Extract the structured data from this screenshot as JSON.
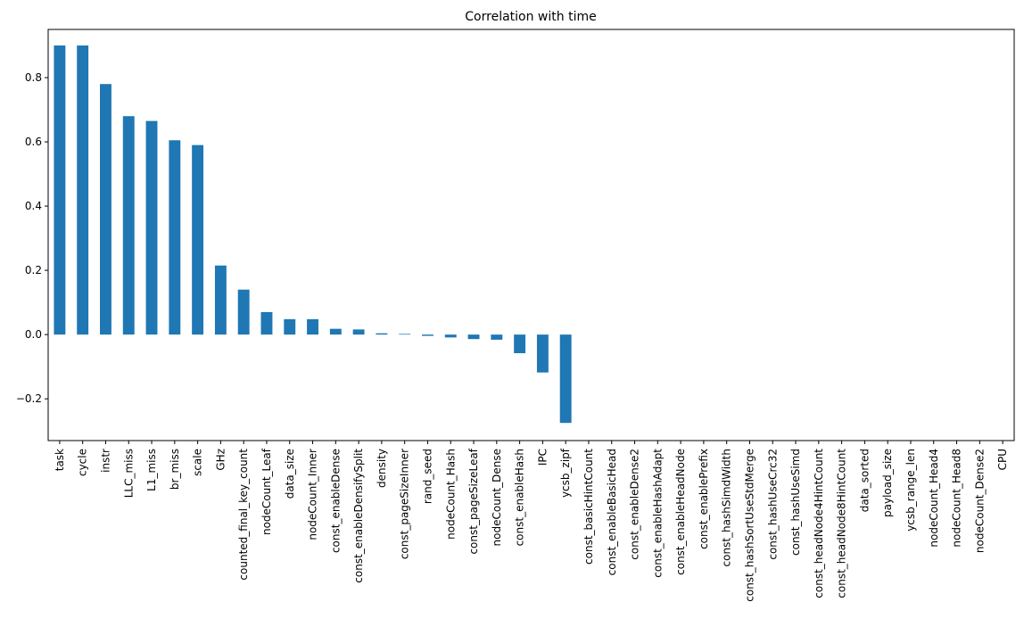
{
  "chart_data": {
    "type": "bar",
    "title": "Correlation with time",
    "xlabel": "",
    "ylabel": "",
    "ylim": [
      -0.33,
      0.95
    ],
    "yticks": [
      -0.2,
      0.0,
      0.2,
      0.4,
      0.6,
      0.8
    ],
    "ytick_labels": [
      "−0.2",
      "0.0",
      "0.2",
      "0.4",
      "0.6",
      "0.8"
    ],
    "grid": false,
    "bar_color": "#1f77b4",
    "categories": [
      "task",
      "cycle",
      "instr",
      "LLC_miss",
      "L1_miss",
      "br_miss",
      "scale",
      "GHz",
      "counted_final_key_count",
      "nodeCount_Leaf",
      "data_size",
      "nodeCount_Inner",
      "const_enableDense",
      "const_enableDensifySplit",
      "density",
      "const_pageSizeInner",
      "rand_seed",
      "nodeCount_Hash",
      "const_pageSizeLeaf",
      "nodeCount_Dense",
      "const_enableHash",
      "IPC",
      "ycsb_zipf",
      "const_basicHintCount",
      "const_enableBasicHead",
      "const_enableDense2",
      "const_enableHashAdapt",
      "const_enableHeadNode",
      "const_enablePrefix",
      "const_hashSimdWidth",
      "const_hashSortUseStdMerge",
      "const_hashUseCrc32",
      "const_hashUseSimd",
      "const_headNode4HintCount",
      "const_headNode8HintCount",
      "data_sorted",
      "payload_size",
      "ycsb_range_len",
      "nodeCount_Head4",
      "nodeCount_Head8",
      "nodeCount_Dense2",
      "CPU"
    ],
    "values": [
      0.9,
      0.9,
      0.78,
      0.68,
      0.665,
      0.605,
      0.59,
      0.215,
      0.14,
      0.07,
      0.048,
      0.048,
      0.018,
      0.016,
      0.004,
      0.002,
      -0.004,
      -0.009,
      -0.014,
      -0.016,
      -0.058,
      -0.118,
      -0.275,
      0,
      0,
      0,
      0,
      0,
      0,
      0,
      0,
      0,
      0,
      0,
      0,
      0,
      0,
      0,
      0,
      0,
      0,
      0
    ]
  }
}
